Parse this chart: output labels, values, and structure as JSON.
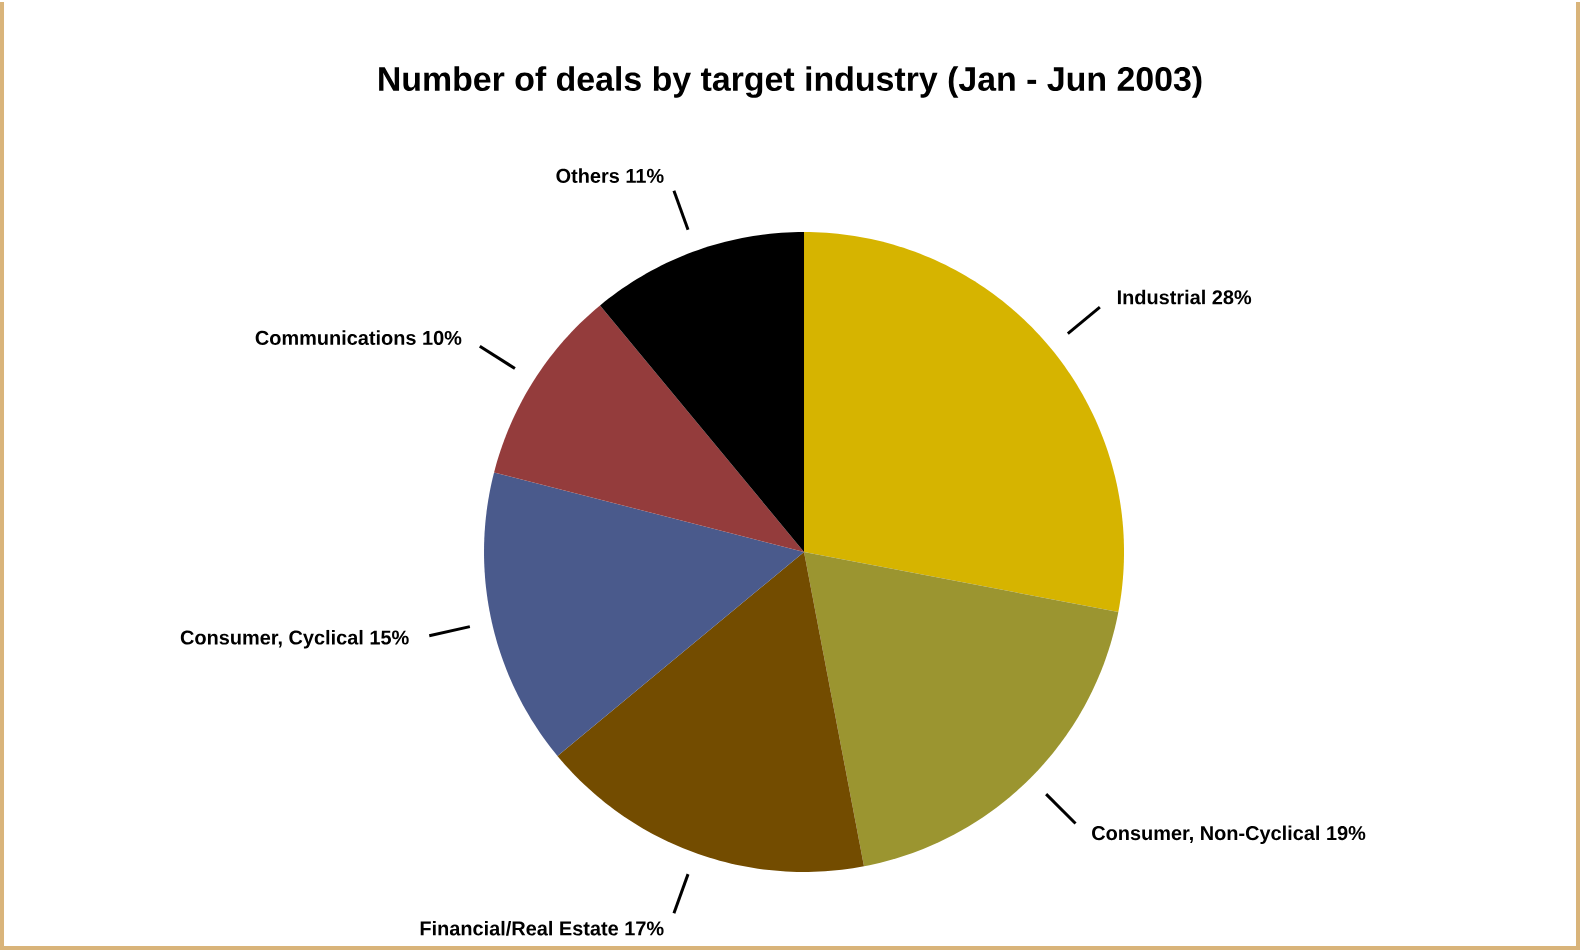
{
  "chart_data": {
    "type": "pie",
    "title": "Number of deals by target industry (Jan - Jun 2003)",
    "categories": [
      "Industrial",
      "Consumer, Non-Cyclical",
      "Financial/Real Estate",
      "Consumer, Cyclical",
      "Communications",
      "Others"
    ],
    "values": [
      28,
      19,
      17,
      15,
      10,
      11
    ],
    "value_labels": [
      "28%",
      "19%",
      "17%",
      "15%",
      "10%",
      "11%"
    ],
    "colors": [
      "#d6b400",
      "#9b9530",
      "#734c00",
      "#4a5a8c",
      "#943c3c",
      "#000000"
    ],
    "legend": false
  }
}
